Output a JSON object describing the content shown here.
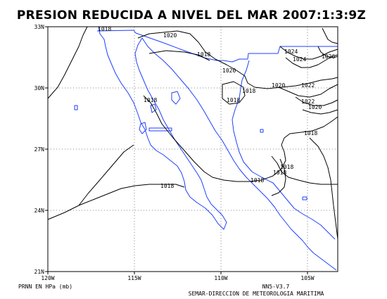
{
  "title": "PRESION REDUCIDA A NIVEL DEL MAR 2007:1:3:9Z",
  "lat_ticks": [
    "33N",
    "30N",
    "27N",
    "24N",
    "21N"
  ],
  "lon_ticks": [
    "120W",
    "115W",
    "110W",
    "105W"
  ],
  "footer": {
    "variable": "PRNN EN HPa (mb)",
    "version": "NN5-V3.7",
    "agency": "SEMAR-DIRECCION DE METEOROLOGIA MARITIMA"
  },
  "contour_labels": [
    "1018",
    "1020",
    "1018",
    "1020",
    "1024",
    "1024",
    "1026",
    "1018",
    "1020",
    "1022",
    "1018",
    "1022",
    "1020",
    "1018",
    "1018",
    "1018",
    "1018",
    "1018",
    "1018"
  ],
  "colors": {
    "coastline": "#1f3fff",
    "isobar": "#000000",
    "frame": "#000000"
  }
}
